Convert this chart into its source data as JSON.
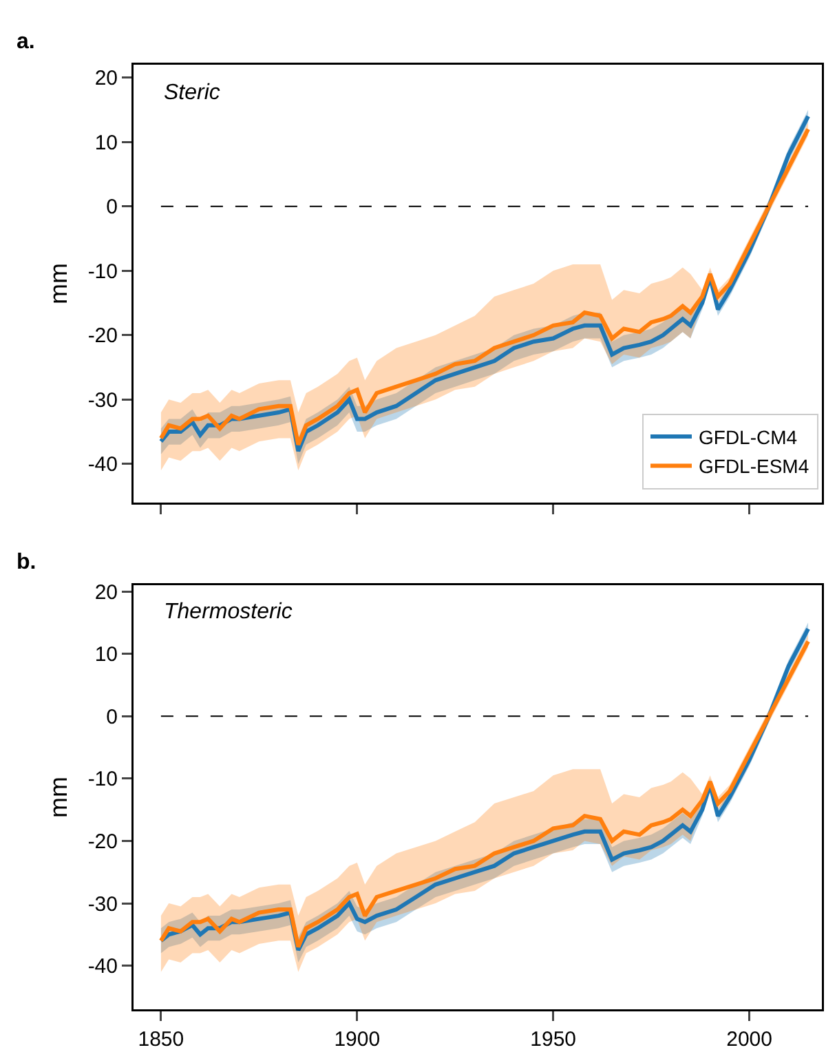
{
  "chart_data": [
    {
      "type": "line",
      "annotations": [
        "a.",
        "Steric"
      ],
      "ylabel": "mm",
      "xlim": [
        1843,
        2018.5
      ],
      "xticks": [
        {
          "value": 1850,
          "label": null
        },
        {
          "value": 1900,
          "label": null
        },
        {
          "value": 1950,
          "label": null
        },
        {
          "value": 2000,
          "label": null
        }
      ],
      "ylim": [
        -46,
        22
      ],
      "yticks": [
        -40,
        -30,
        -20,
        -10,
        0,
        10,
        20
      ],
      "tick_labels": "y",
      "grid": false,
      "legend": "bottom right",
      "line_style": "solid",
      "marker": "none",
      "x": [
        1850,
        1852,
        1855,
        1858,
        1860,
        1862,
        1865,
        1868,
        1870,
        1875,
        1880,
        1883,
        1885,
        1887,
        1890,
        1895,
        1898,
        1900,
        1902,
        1905,
        1910,
        1915,
        1920,
        1925,
        1930,
        1935,
        1940,
        1945,
        1950,
        1955,
        1958,
        1962,
        1965,
        1968,
        1972,
        1975,
        1978,
        1980,
        1983,
        1985,
        1988,
        1990,
        1992,
        1995,
        2000,
        2005,
        2010,
        2015
      ],
      "ref_lines": [
        {
          "axis": "y",
          "value": 0,
          "line_style": "dashed",
          "color": "#000000"
        }
      ],
      "series": [
        {
          "name": "GFDL-CM4",
          "color": "#1f77b4",
          "values": [
            -36.5,
            -35,
            -35,
            -33.5,
            -35.5,
            -34,
            -34,
            -33,
            -33,
            -32.5,
            -32,
            -31.5,
            -38,
            -35,
            -34,
            -32,
            -30,
            -33,
            -33,
            -32,
            -31,
            -29,
            -27,
            -26,
            -25,
            -24,
            -22,
            -21,
            -20.5,
            -19,
            -18.5,
            -18.5,
            -23,
            -22,
            -21.5,
            -21,
            -20,
            -19,
            -17.5,
            -18.5,
            -15,
            -11,
            -16,
            -13,
            -7,
            0,
            8,
            14
          ],
          "lower": [
            -38.5,
            -37,
            -37,
            -35.5,
            -37.5,
            -36,
            -36,
            -35,
            -35,
            -34.5,
            -34,
            -33.5,
            -40,
            -37,
            -36,
            -34,
            -32,
            -35,
            -35,
            -34,
            -33,
            -31,
            -29,
            -28,
            -27,
            -26,
            -24,
            -23,
            -22.5,
            -21,
            -20.5,
            -20.5,
            -25,
            -24,
            -23.5,
            -23,
            -22,
            -21,
            -19.5,
            -20.5,
            -16,
            -12,
            -17,
            -14,
            -8,
            -1,
            7,
            13
          ],
          "upper": [
            -34.5,
            -33,
            -33,
            -31.5,
            -33.5,
            -32,
            -32,
            -31,
            -31,
            -30.5,
            -30,
            -29.5,
            -36,
            -33,
            -32,
            -30,
            -28,
            -31,
            -31,
            -30,
            -29,
            -27,
            -25,
            -24,
            -23,
            -22,
            -20,
            -19,
            -18.5,
            -17,
            -16.5,
            -16.5,
            -21,
            -20,
            -19.5,
            -19,
            -18,
            -17,
            -15.5,
            -16.5,
            -14,
            -10,
            -15,
            -12,
            -6,
            1,
            9,
            15
          ]
        },
        {
          "name": "GFDL-ESM4",
          "color": "#ff7f0e",
          "values": [
            -36,
            -34,
            -34.5,
            -33,
            -33,
            -32.5,
            -34.5,
            -32.5,
            -33,
            -31.5,
            -31,
            -31,
            -37,
            -34,
            -33,
            -31,
            -29,
            -28.5,
            -32,
            -29,
            -28,
            -27,
            -26,
            -24.5,
            -24,
            -22,
            -21,
            -20,
            -18.5,
            -18,
            -16.5,
            -17,
            -20.5,
            -19,
            -19.5,
            -18,
            -17.5,
            -17,
            -15.5,
            -16.5,
            -14,
            -10.5,
            -14,
            -12,
            -6,
            0,
            6,
            12
          ],
          "lower": [
            -41,
            -39,
            -39.5,
            -38,
            -38,
            -37.5,
            -39.5,
            -37.5,
            -38,
            -36.5,
            -36,
            -36,
            -41,
            -38,
            -37,
            -35,
            -33,
            -32.5,
            -36,
            -33,
            -32,
            -31,
            -30,
            -28.5,
            -28,
            -26,
            -25,
            -24,
            -22.5,
            -22,
            -20.5,
            -21,
            -24.5,
            -23,
            -23.5,
            -22,
            -21.5,
            -21,
            -19.5,
            -20.5,
            -15,
            -11.5,
            -15,
            -13,
            -7,
            -1,
            5,
            11
          ],
          "upper": [
            -32,
            -30,
            -30.5,
            -29,
            -29,
            -28.5,
            -30.5,
            -28.5,
            -29,
            -27.5,
            -27,
            -27,
            -32,
            -29,
            -28,
            -26,
            -24,
            -23.5,
            -27,
            -24,
            -22,
            -21,
            -20,
            -18.5,
            -17,
            -14,
            -13,
            -12,
            -10,
            -9,
            -9,
            -9,
            -14.5,
            -13,
            -13.5,
            -12,
            -11.5,
            -11,
            -9.5,
            -10.5,
            -13,
            -9.5,
            -13,
            -11,
            -5,
            1,
            7,
            13
          ]
        }
      ]
    },
    {
      "type": "line",
      "annotations": [
        "b.",
        "Thermosteric"
      ],
      "ylabel": "mm",
      "xlim": [
        1843,
        2018.5
      ],
      "xticks": [
        1850,
        1900,
        1950,
        2000
      ],
      "ylim": [
        -47,
        21
      ],
      "yticks": [
        -40,
        -30,
        -20,
        -10,
        0,
        10,
        20
      ],
      "grid": false,
      "line_style": "solid",
      "marker": "none",
      "x": [
        1850,
        1852,
        1855,
        1858,
        1860,
        1862,
        1865,
        1868,
        1870,
        1875,
        1880,
        1883,
        1885,
        1887,
        1890,
        1895,
        1898,
        1900,
        1902,
        1905,
        1910,
        1915,
        1920,
        1925,
        1930,
        1935,
        1940,
        1945,
        1950,
        1955,
        1958,
        1962,
        1965,
        1968,
        1972,
        1975,
        1978,
        1980,
        1983,
        1985,
        1988,
        1990,
        1992,
        1995,
        2000,
        2005,
        2010,
        2015
      ],
      "ref_lines": [
        {
          "axis": "y",
          "value": 0,
          "line_style": "dashed",
          "color": "#000000"
        }
      ],
      "series": [
        {
          "color": "#1f77b4",
          "values": [
            -36,
            -35,
            -34.5,
            -33.5,
            -35,
            -34,
            -34,
            -33,
            -33,
            -32.5,
            -32,
            -31.5,
            -37.5,
            -35,
            -34,
            -32,
            -30,
            -32.5,
            -33,
            -32,
            -31,
            -29,
            -27,
            -26,
            -25,
            -24,
            -22,
            -21,
            -20,
            -19,
            -18.5,
            -18.5,
            -23,
            -22,
            -21.5,
            -21,
            -20,
            -19,
            -17.5,
            -18.5,
            -15,
            -11,
            -16,
            -13,
            -7,
            0,
            8,
            14
          ],
          "lower": [
            -38,
            -37,
            -36.5,
            -35.5,
            -37,
            -36,
            -36,
            -35,
            -35,
            -34.5,
            -34,
            -33.5,
            -39.5,
            -37,
            -36,
            -34,
            -32,
            -34.5,
            -35,
            -34,
            -33,
            -31,
            -29,
            -28,
            -27,
            -26,
            -24,
            -23,
            -22,
            -21,
            -20.5,
            -20.5,
            -25,
            -24,
            -23.5,
            -23,
            -22,
            -21,
            -19.5,
            -20.5,
            -16,
            -12,
            -17,
            -14,
            -8,
            -1,
            7,
            13
          ],
          "upper": [
            -34,
            -33,
            -32.5,
            -31.5,
            -33,
            -32,
            -32,
            -31,
            -31,
            -30.5,
            -30,
            -29.5,
            -35.5,
            -33,
            -32,
            -30,
            -28,
            -30.5,
            -31,
            -30,
            -29,
            -27,
            -25,
            -24,
            -23,
            -22,
            -20,
            -19,
            -18,
            -17,
            -16.5,
            -16.5,
            -21,
            -20,
            -19.5,
            -19,
            -18,
            -17,
            -15.5,
            -16.5,
            -14,
            -10,
            -15,
            -12,
            -6,
            1,
            9,
            15
          ]
        },
        {
          "color": "#ff7f0e",
          "values": [
            -36,
            -34,
            -34.5,
            -33,
            -33,
            -32.5,
            -34.5,
            -32.5,
            -33,
            -31.5,
            -31,
            -31,
            -37,
            -34,
            -33,
            -31,
            -29,
            -28.5,
            -32,
            -29,
            -28,
            -27,
            -26,
            -24.5,
            -24,
            -22,
            -21,
            -20,
            -18,
            -17.5,
            -16,
            -16.5,
            -20,
            -18.5,
            -19,
            -17.5,
            -17,
            -16.5,
            -15,
            -16,
            -13.5,
            -10.5,
            -14,
            -12,
            -6,
            0,
            6,
            12
          ],
          "lower": [
            -41,
            -39,
            -39.5,
            -38,
            -38,
            -37.5,
            -39.5,
            -37.5,
            -38,
            -36.5,
            -36,
            -36,
            -41,
            -38,
            -37,
            -35,
            -33,
            -32.5,
            -36,
            -33,
            -32,
            -31,
            -30,
            -28.5,
            -28,
            -26,
            -25,
            -24,
            -22,
            -21.5,
            -20,
            -20.5,
            -24,
            -22.5,
            -23,
            -21.5,
            -21,
            -20.5,
            -19,
            -20,
            -14.5,
            -11.5,
            -15,
            -13,
            -7,
            -1,
            5,
            11
          ],
          "upper": [
            -32,
            -30,
            -30.5,
            -29,
            -29,
            -28.5,
            -30.5,
            -28.5,
            -29,
            -27.5,
            -27,
            -27,
            -32,
            -29,
            -28,
            -26,
            -24,
            -23.5,
            -27,
            -24,
            -22,
            -21,
            -20,
            -18.5,
            -17,
            -14,
            -13,
            -12,
            -9.5,
            -8.5,
            -8.5,
            -8.5,
            -14,
            -12.5,
            -13,
            -11.5,
            -11,
            -10.5,
            -9,
            -10,
            -12.5,
            -9.5,
            -13,
            -11,
            -5,
            1,
            7,
            13
          ]
        }
      ]
    }
  ]
}
